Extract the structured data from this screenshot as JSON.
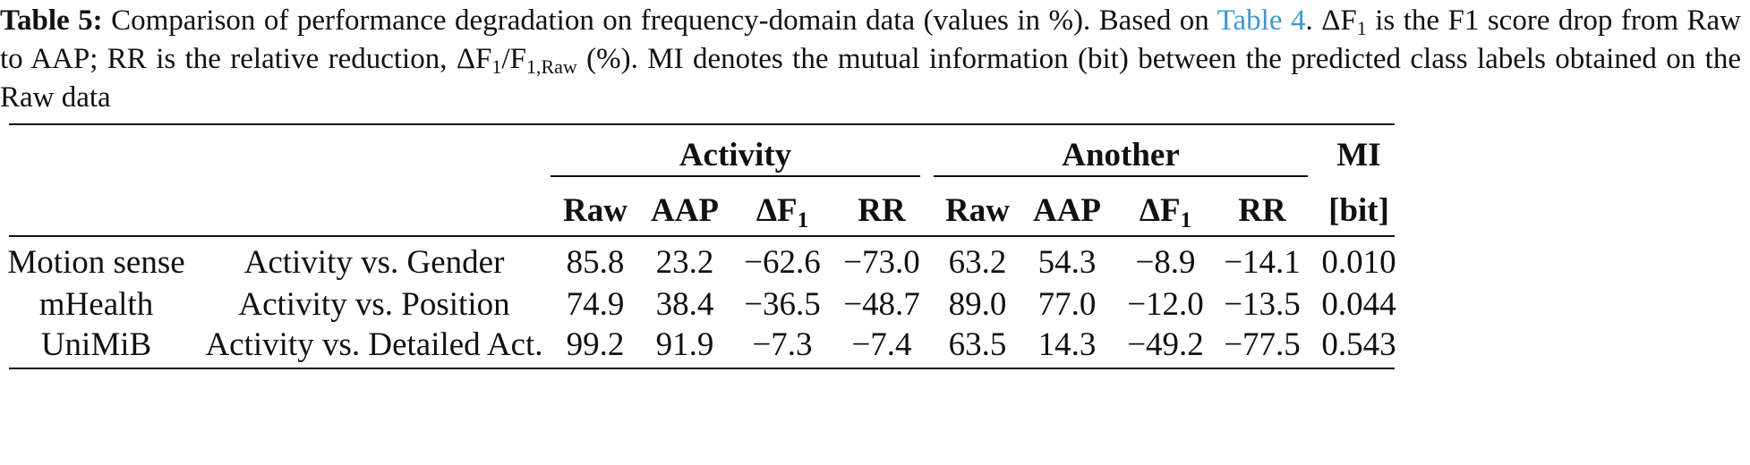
{
  "caption": {
    "label": "Table 5:",
    "text_part1": " Comparison of performance degradation on frequency-domain data (values in %). Based on ",
    "link_text": "Table 4",
    "text_part2": ". ΔF",
    "sub1": "1",
    "text_part3": " is the F1 score drop from Raw to AAP; RR is the relative reduction, ΔF",
    "sub2": "1",
    "text_part4": "/F",
    "sub3": "1,Raw",
    "text_part5": " (%). MI denotes the mutual information (bit) between the predicted class labels obtained on the Raw data"
  },
  "table": {
    "group_headers": {
      "activity": "Activity",
      "another": "Another",
      "mi": "MI"
    },
    "col_headers": {
      "raw": "Raw",
      "aap": "AAP",
      "delta_main": "ΔF",
      "delta_sub": "1",
      "rr": "RR",
      "mi_unit": "[bit]"
    },
    "rows": [
      {
        "dataset": "Motion sense",
        "task": "Activity vs. Gender",
        "act_raw": "85.8",
        "act_aap": "23.2",
        "act_df": "−62.6",
        "act_rr": "−73.0",
        "ano_raw": "63.2",
        "ano_aap": "54.3",
        "ano_df": "−8.9",
        "ano_rr": "−14.1",
        "mi": "0.010"
      },
      {
        "dataset": "mHealth",
        "task": "Activity vs. Position",
        "act_raw": "74.9",
        "act_aap": "38.4",
        "act_df": "−36.5",
        "act_rr": "−48.7",
        "ano_raw": "89.0",
        "ano_aap": "77.0",
        "ano_df": "−12.0",
        "ano_rr": "−13.5",
        "mi": "0.044"
      },
      {
        "dataset": "UniMiB",
        "task": "Activity vs. Detailed Act.",
        "act_raw": "99.2",
        "act_aap": "91.9",
        "act_df": "−7.3",
        "act_rr": "−7.4",
        "ano_raw": "63.5",
        "ano_aap": "14.3",
        "ano_df": "−49.2",
        "ano_rr": "−77.5",
        "mi": "0.543"
      }
    ]
  }
}
